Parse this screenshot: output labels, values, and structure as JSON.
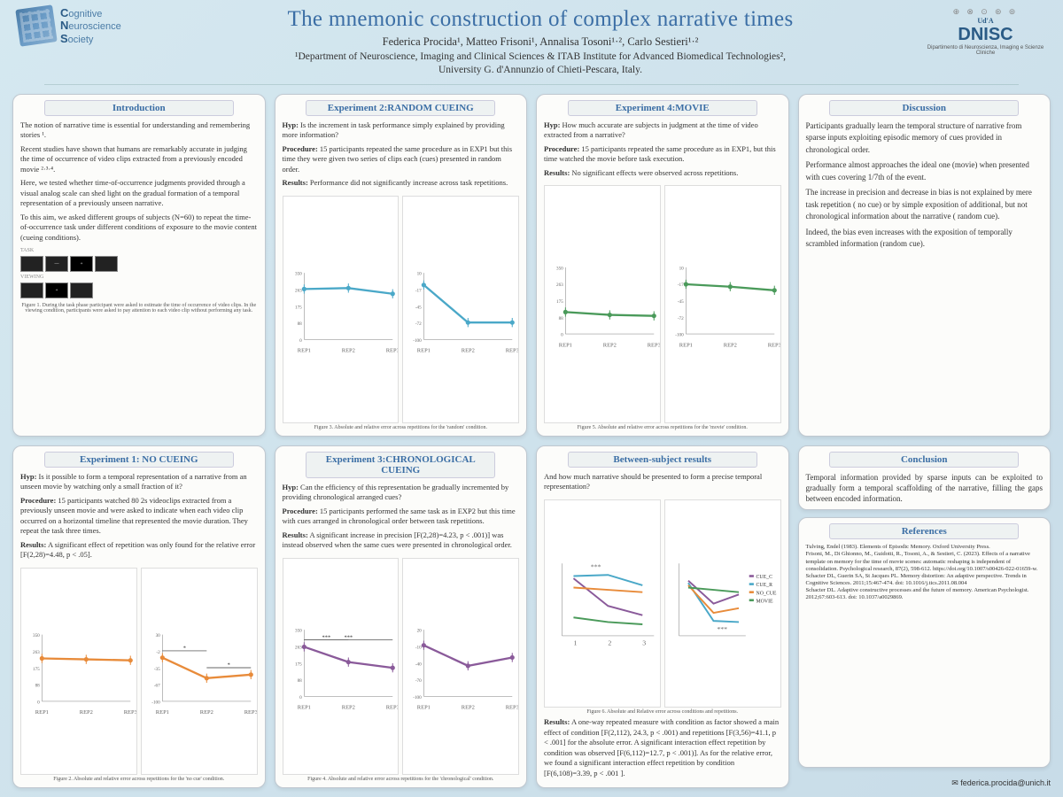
{
  "header": {
    "cns": "Cognitive\nNeuroscience\nSociety",
    "title": "The mnemonic construction of complex narrative times",
    "authors": "Federica Procida¹, Matteo Frisoni¹, Annalisa Tosoni¹·², Carlo Sestieri¹·²",
    "affil": "¹Department of Neuroscience, Imaging and Clinical Sciences & ITAB Institute for Advanced Biomedical Technologies²,\nUniversity G. d'Annunzio of Chieti-Pescara, Italy.",
    "dnisc": "DNISC",
    "dnisc_sub": "Dipartimento di Neuroscienza, Imaging e Scienze Cliniche"
  },
  "intro": {
    "title": "Introduction",
    "p1": "The notion of narrative time is essential for understanding and remembering stories ¹.",
    "p2": "Recent studies have shown that humans are remarkably accurate in judging the time of occurrence of video clips extracted from a previously encoded movie ²·³·⁴.",
    "p3": "Here, we tested whether time-of-occurrence judgments provided through a visual analog scale can shed light on the gradual formation of a temporal representation of a previously unseen narrative.",
    "p4": "To this aim, we asked different groups of subjects (N=60) to repeat the time-of-occurrence task under different conditions of exposure to the movie content (cueing conditions).",
    "caption": "Figure 1. During the task phase participant were asked to estimate the time of occurrence of video clips. In the viewing condition, participants were asked to pay attention to each video clip without performing any task."
  },
  "exp1": {
    "title": "Experiment 1: NO CUEING",
    "hyp": "Is it possible to form a temporal representation of a narrative from an unseen movie by watching only a small fraction of it?",
    "proc": "15 participants watched 80 2s videoclips extracted from a previously unseen movie and were asked to indicate when each video clip occurred on a horizontal timeline that represented the movie duration. They repeat the task three times.",
    "res": "A significant effect of repetition was only found for the relative error [F(2,28)=4.48, p < .05].",
    "caption": "Figure 2. Absolute and relative error across repetitions for the 'no cue' condition.",
    "chart": {
      "type": "line",
      "color": "#e88b3a",
      "categories": [
        "REP1",
        "REP2",
        "REP3"
      ],
      "abs": {
        "values": [
          225,
          220,
          215
        ],
        "ylim": [
          0,
          350
        ]
      },
      "rel": {
        "values": [
          -15,
          -55,
          -48
        ],
        "sig": [
          [
            1,
            2,
            "*"
          ],
          [
            2,
            3,
            "*"
          ]
        ],
        "ylim": [
          -100,
          30
        ]
      }
    }
  },
  "exp2": {
    "title": "Experiment 2:RANDOM CUEING",
    "hyp": "Is the increment in task performance simply explained by providing more information?",
    "proc": "15 participants repeated the same procedure as in EXP1 but this time they were given two series of clips each (cues) presented in random order.",
    "res": "Performance did not significantly increase across task repetitions.",
    "caption": "Figure 3. Absolute and relative error across repetitions for the 'random' condition.",
    "chart": {
      "type": "line",
      "color": "#4aa8c8",
      "categories": [
        "REP1",
        "REP2",
        "REP3"
      ],
      "abs": {
        "values": [
          265,
          270,
          240
        ],
        "ylim": [
          0,
          350
        ]
      },
      "rel": {
        "values": [
          -10,
          -72,
          -72
        ],
        "ylim": [
          -100,
          10
        ]
      }
    }
  },
  "exp3": {
    "title": "Experiment 3:CHRONOLOGICAL CUEING",
    "hyp": "Can the efficiency of this representation be gradually incremented by providing chronological arranged cues?",
    "proc": "15 participants performed the same task as in EXP2 but this time with cues arranged in chronological order between task repetitions.",
    "res": "A significant increase in precision [F(2,28)=4.23, p < .001)] was instead observed when the same cues were presented in chronological order.",
    "caption": "Figure 4. Absolute and relative error across repetitions for the 'chronological' condition.",
    "chart": {
      "type": "line",
      "color": "#8a5a9a",
      "categories": [
        "REP1",
        "REP2",
        "REP3"
      ],
      "abs": {
        "values": [
          260,
          180,
          150
        ],
        "sig": [
          [
            1,
            2,
            "***"
          ],
          [
            1,
            3,
            "***"
          ]
        ],
        "ylim": [
          0,
          350
        ]
      },
      "rel": {
        "values": [
          -8,
          -45,
          -30
        ],
        "ylim": [
          -100,
          20
        ]
      }
    }
  },
  "exp4": {
    "title": "Experiment 4:MOVIE",
    "hyp": "How much accurate are subjects in judgment at the time of video extracted from a narrative?",
    "proc": "15 participants repeated the same procedure as in EXP1, but this time watched the movie before task execution.",
    "res": "No significant effects were observed across repetitions.",
    "caption": "Figure 5. Absolute and relative error across repetitions for the 'movie' condition.",
    "chart": {
      "type": "line",
      "color": "#4a9a5a",
      "categories": [
        "REP1",
        "REP2",
        "REP3"
      ],
      "abs": {
        "values": [
          115,
          100,
          95
        ],
        "ylim": [
          0,
          350
        ]
      },
      "rel": {
        "values": [
          -18,
          -22,
          -28
        ],
        "ylim": [
          -100,
          10
        ]
      }
    }
  },
  "between": {
    "title": "Between-subject results",
    "q": "And how much narrative should be presented to form a precise temporal representation?",
    "caption": "Figure 6. Absolute and Relative error across conditions and repetitions.",
    "res": "A one-way repeated measure with condition as factor showed a main effect of condition [F(2,112), 24.3, p < .001) and repetitions [F(3,56)=41.1, p < .001] for the absolute error. A significant interaction effect repetition by condition was observed [F(6,112)=12.7, p < .001)]. As for the relative error, we found a significant interaction effect repetition by condition [F(6,108)=3.39, p < .001 ].",
    "legend": [
      "CUE_C",
      "CUE_R",
      "NO_CUE",
      "MOVIE"
    ],
    "colors": [
      "#8a5a9a",
      "#4aa8c8",
      "#e88b3a",
      "#4a9a5a"
    ]
  },
  "discussion": {
    "title": "Discussion",
    "p1": "Participants gradually learn the temporal structure of narrative from sparse inputs exploiting episodic memory of cues provided in chronological order.",
    "p2": "Performance almost approaches the ideal one (movie) when presented with cues covering 1/7th of the event.",
    "p3": "The increase in precision and decrease in bias is not explained by mere task repetition ( no cue) or by simple exposition of additional, but not chronological information about the narrative ( random cue).",
    "p4": "Indeed, the bias even increases with the exposition of temporally scrambled information (random cue)."
  },
  "conclusion": {
    "title": "Conclusion",
    "text": "Temporal information provided by sparse inputs can be exploited to gradually form a temporal scaffolding of the narrative, filling the gaps between encoded information."
  },
  "references": {
    "title": "References",
    "text": "Tulving, Endel (1983). Elements of Episodic Memory. Oxford University Press.\nFrisoni, M., Di Ghionno, M., Guidotti, R., Tosoni, A., & Sestieri, C. (2023). Effects of a narrative template on memory for the time of movie scenes: automatic reshaping is independent of consolidation. Psychological research, 87(2), 598-612. https://doi.org/10.1007/s00426-022-01659-w.\nSchacter DL, Guerin SA, St Jacques PL. Memory distortion: An adaptive perspective. Trends in Cognitive Sciences. 2011;15:467-474. doi: 10.1016/j.tics.2011.08.004\nSchacter DL. Adaptive constructive processes and the future of memory. American Psychologist. 2012;67:603-613. doi: 10.1037/a0029869."
  },
  "email": "federica.procida@unich.it"
}
